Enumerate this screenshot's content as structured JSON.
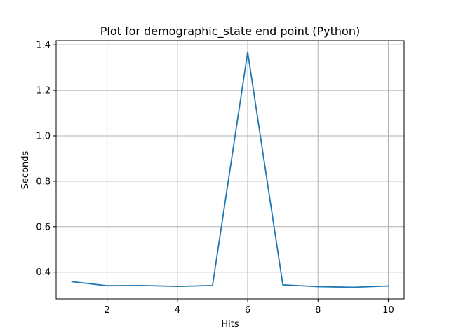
{
  "chart_data": {
    "type": "line",
    "title": "Plot for demographic_state end point (Python)",
    "xlabel": "Hits",
    "ylabel": "Seconds",
    "x": [
      1,
      2,
      3,
      4,
      5,
      6,
      7,
      8,
      9,
      10
    ],
    "series": [
      {
        "values": [
          0.358,
          0.34,
          0.341,
          0.337,
          0.341,
          1.368,
          0.344,
          0.336,
          0.333,
          0.339
        ]
      }
    ],
    "xlim": [
      0.55,
      10.45
    ],
    "ylim": [
      0.282,
      1.419
    ],
    "xticks": [
      2,
      4,
      6,
      8,
      10
    ],
    "xtick_labels": [
      "2",
      "4",
      "6",
      "8",
      "10"
    ],
    "yticks": [
      0.4,
      0.6,
      0.8,
      1.0,
      1.2,
      1.4
    ],
    "ytick_labels": [
      "0.4",
      "0.6",
      "0.8",
      "1.0",
      "1.2",
      "1.4"
    ],
    "grid": true,
    "line_color": "#1f77b4",
    "grid_color": "#b0b0b0"
  }
}
